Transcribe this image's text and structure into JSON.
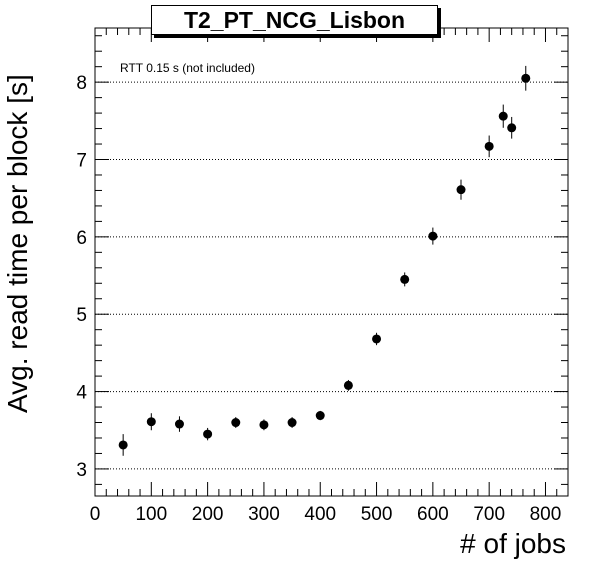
{
  "chart_data": {
    "type": "scatter",
    "title": "T2_PT_NCG_Lisbon",
    "xlabel": "# of jobs",
    "ylabel": "Avg. read time per block [s]",
    "annotation": "RTT 0.15 s (not included)",
    "xlim": [
      0,
      840
    ],
    "ylim": [
      2.65,
      8.7
    ],
    "xticks": [
      0,
      100,
      200,
      300,
      400,
      500,
      600,
      700,
      800
    ],
    "yticks": [
      3,
      4,
      5,
      6,
      7,
      8
    ],
    "grid": "horizontal-dotted",
    "marker_color": "#000000",
    "x": [
      50,
      100,
      150,
      200,
      250,
      300,
      350,
      400,
      450,
      500,
      550,
      600,
      650,
      700,
      725,
      740,
      765
    ],
    "y": [
      3.31,
      3.61,
      3.58,
      3.45,
      3.6,
      3.57,
      3.6,
      3.69,
      4.08,
      4.68,
      5.45,
      6.01,
      6.61,
      7.17,
      7.56,
      7.41,
      8.05
    ],
    "yerr": [
      0.14,
      0.11,
      0.1,
      0.08,
      0.07,
      0.07,
      0.07,
      0.06,
      0.07,
      0.08,
      0.09,
      0.11,
      0.13,
      0.14,
      0.15,
      0.14,
      0.16
    ]
  }
}
